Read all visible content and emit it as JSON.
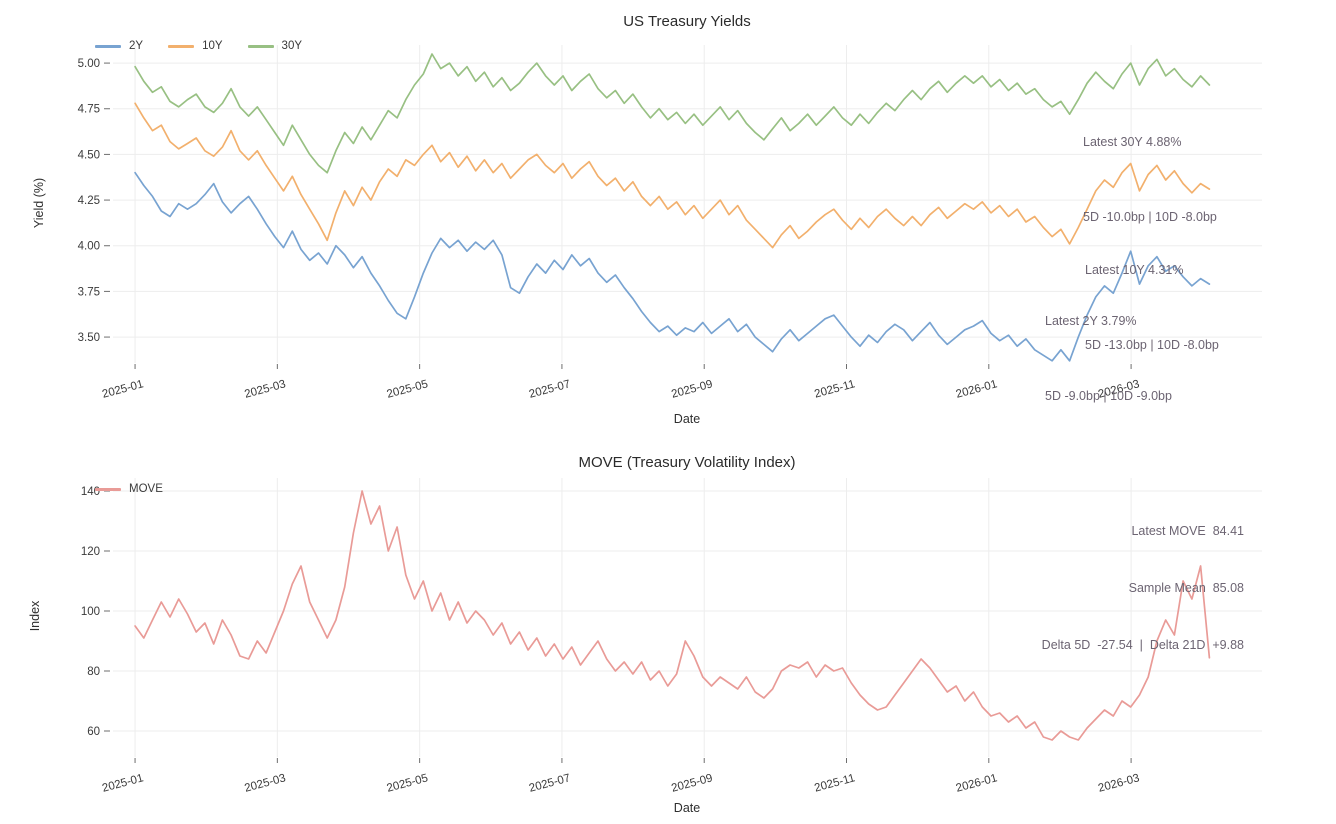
{
  "page": {
    "background": "#ffffff",
    "grid_color": "#ededed",
    "tick_color": "#6e6e6e",
    "annotation_color": "#6c6472"
  },
  "chart_data": [
    {
      "type": "line",
      "title": "US Treasury Yields",
      "xlabel": "Date",
      "ylabel": "Yield (%)",
      "grid": true,
      "legend_position": "top-left",
      "xlim": [
        -0.31,
        15.84
      ],
      "ylim": [
        3.358,
        5.099
      ],
      "x_unit": "months since 2025-01",
      "x_start": 0,
      "x_end": 15.1,
      "x_ticks": {
        "months": [
          0,
          2,
          4,
          6,
          8,
          10,
          12,
          14
        ],
        "labels": [
          "2025-01",
          "2025-03",
          "2025-05",
          "2025-07",
          "2025-09",
          "2025-11",
          "2026-01",
          "2026-03"
        ]
      },
      "y_ticks": {
        "values": [
          3.5,
          3.75,
          4.0,
          4.25,
          4.5,
          4.75,
          5.0
        ],
        "labels": [
          "3.50",
          "3.75",
          "4.00",
          "4.25",
          "4.50",
          "4.75",
          "5.00"
        ]
      },
      "series": [
        {
          "name": "2Y",
          "color": "#78a3d1",
          "values": [
            4.4,
            4.33,
            4.27,
            4.19,
            4.16,
            4.23,
            4.2,
            4.23,
            4.28,
            4.34,
            4.24,
            4.18,
            4.23,
            4.27,
            4.2,
            4.12,
            4.05,
            3.99,
            4.08,
            3.98,
            3.92,
            3.96,
            3.9,
            4.0,
            3.95,
            3.88,
            3.94,
            3.85,
            3.78,
            3.7,
            3.63,
            3.6,
            3.72,
            3.85,
            3.96,
            4.04,
            3.99,
            4.03,
            3.97,
            4.02,
            3.98,
            4.03,
            3.95,
            3.77,
            3.74,
            3.83,
            3.9,
            3.85,
            3.92,
            3.87,
            3.95,
            3.89,
            3.93,
            3.85,
            3.8,
            3.84,
            3.77,
            3.71,
            3.64,
            3.58,
            3.53,
            3.56,
            3.51,
            3.55,
            3.53,
            3.58,
            3.52,
            3.56,
            3.6,
            3.53,
            3.57,
            3.5,
            3.46,
            3.42,
            3.49,
            3.54,
            3.48,
            3.52,
            3.56,
            3.6,
            3.62,
            3.56,
            3.5,
            3.45,
            3.51,
            3.47,
            3.53,
            3.57,
            3.54,
            3.48,
            3.53,
            3.58,
            3.51,
            3.46,
            3.5,
            3.54,
            3.56,
            3.59,
            3.52,
            3.48,
            3.51,
            3.45,
            3.49,
            3.43,
            3.4,
            3.37,
            3.43,
            3.37,
            3.5,
            3.62,
            3.72,
            3.78,
            3.74,
            3.85,
            3.97,
            3.79,
            3.89,
            3.94,
            3.86,
            3.89,
            3.83,
            3.78,
            3.82,
            3.79
          ]
        },
        {
          "name": "10Y",
          "color": "#f2b06d",
          "values": [
            4.78,
            4.7,
            4.63,
            4.66,
            4.57,
            4.53,
            4.56,
            4.59,
            4.52,
            4.49,
            4.54,
            4.63,
            4.52,
            4.47,
            4.52,
            4.44,
            4.37,
            4.3,
            4.38,
            4.28,
            4.2,
            4.12,
            4.03,
            4.18,
            4.3,
            4.22,
            4.32,
            4.25,
            4.35,
            4.42,
            4.38,
            4.47,
            4.44,
            4.5,
            4.55,
            4.46,
            4.51,
            4.43,
            4.49,
            4.41,
            4.47,
            4.4,
            4.45,
            4.37,
            4.42,
            4.47,
            4.5,
            4.44,
            4.4,
            4.45,
            4.37,
            4.42,
            4.46,
            4.38,
            4.33,
            4.37,
            4.3,
            4.35,
            4.27,
            4.22,
            4.27,
            4.2,
            4.24,
            4.17,
            4.22,
            4.15,
            4.2,
            4.25,
            4.17,
            4.22,
            4.14,
            4.09,
            4.04,
            3.99,
            4.06,
            4.11,
            4.04,
            4.08,
            4.13,
            4.17,
            4.2,
            4.14,
            4.09,
            4.15,
            4.1,
            4.16,
            4.2,
            4.15,
            4.11,
            4.16,
            4.11,
            4.17,
            4.21,
            4.15,
            4.19,
            4.23,
            4.2,
            4.24,
            4.18,
            4.22,
            4.16,
            4.2,
            4.13,
            4.16,
            4.1,
            4.05,
            4.09,
            4.01,
            4.1,
            4.2,
            4.3,
            4.36,
            4.32,
            4.4,
            4.45,
            4.3,
            4.39,
            4.44,
            4.36,
            4.41,
            4.34,
            4.29,
            4.34,
            4.31
          ]
        },
        {
          "name": "30Y",
          "color": "#98c083",
          "values": [
            4.98,
            4.9,
            4.84,
            4.87,
            4.79,
            4.76,
            4.8,
            4.83,
            4.76,
            4.73,
            4.78,
            4.86,
            4.76,
            4.71,
            4.76,
            4.69,
            4.62,
            4.55,
            4.66,
            4.58,
            4.5,
            4.44,
            4.4,
            4.52,
            4.62,
            4.56,
            4.65,
            4.58,
            4.66,
            4.74,
            4.7,
            4.8,
            4.88,
            4.94,
            5.05,
            4.97,
            5.0,
            4.93,
            4.98,
            4.9,
            4.95,
            4.87,
            4.92,
            4.85,
            4.89,
            4.95,
            5.0,
            4.93,
            4.88,
            4.93,
            4.85,
            4.9,
            4.94,
            4.86,
            4.81,
            4.85,
            4.78,
            4.83,
            4.76,
            4.7,
            4.75,
            4.69,
            4.73,
            4.67,
            4.72,
            4.66,
            4.71,
            4.76,
            4.69,
            4.74,
            4.67,
            4.62,
            4.58,
            4.64,
            4.7,
            4.63,
            4.67,
            4.72,
            4.66,
            4.71,
            4.76,
            4.7,
            4.66,
            4.72,
            4.67,
            4.73,
            4.78,
            4.74,
            4.8,
            4.85,
            4.8,
            4.86,
            4.9,
            4.84,
            4.89,
            4.93,
            4.89,
            4.93,
            4.87,
            4.91,
            4.85,
            4.89,
            4.83,
            4.86,
            4.8,
            4.76,
            4.79,
            4.72,
            4.8,
            4.89,
            4.95,
            4.9,
            4.86,
            4.94,
            5.0,
            4.88,
            4.97,
            5.02,
            4.93,
            4.97,
            4.91,
            4.87,
            4.93,
            4.88
          ]
        }
      ],
      "annotations": [
        {
          "id": "ann-30y",
          "lines": [
            "Latest 30Y 4.88%",
            "5D -10.0bp | 10D -8.0bp"
          ]
        },
        {
          "id": "ann-10y",
          "lines": [
            "Latest 10Y 4.31%",
            "5D -13.0bp | 10D -8.0bp"
          ]
        },
        {
          "id": "ann-2y",
          "lines": [
            "Latest 2Y 3.79%",
            "5D -9.0bp | 10D -9.0bp"
          ]
        }
      ]
    },
    {
      "type": "line",
      "title": "MOVE (Treasury Volatility Index)",
      "xlabel": "Date",
      "ylabel": "Index",
      "grid": true,
      "legend_position": "top-left",
      "xlim": [
        -0.31,
        15.84
      ],
      "ylim": [
        51.33,
        144.33
      ],
      "x_unit": "months since 2025-01",
      "x_start": 0,
      "x_end": 15.1,
      "x_ticks": {
        "months": [
          0,
          2,
          4,
          6,
          8,
          10,
          12,
          14
        ],
        "labels": [
          "2025-01",
          "2025-03",
          "2025-05",
          "2025-07",
          "2025-09",
          "2025-11",
          "2026-01",
          "2026-03"
        ]
      },
      "y_ticks": {
        "values": [
          60,
          80,
          100,
          120,
          140
        ],
        "labels": [
          "60",
          "80",
          "100",
          "120",
          "140"
        ]
      },
      "series": [
        {
          "name": "MOVE",
          "color": "#e99b97",
          "values": [
            95,
            91,
            97,
            103,
            98,
            104,
            99,
            93,
            96,
            89,
            97,
            92,
            85,
            84,
            90,
            86,
            93,
            100,
            109,
            115,
            103,
            97,
            91,
            97,
            108,
            126,
            140,
            129,
            135,
            120,
            128,
            112,
            104,
            110,
            100,
            106,
            97,
            103,
            96,
            100,
            97,
            92,
            96,
            89,
            93,
            87,
            91,
            85,
            89,
            84,
            88,
            82,
            86,
            90,
            84,
            80,
            83,
            79,
            83,
            77,
            80,
            75,
            79,
            90,
            85,
            78,
            75,
            78,
            76,
            74,
            78,
            73,
            71,
            74,
            80,
            82,
            81,
            83,
            78,
            82,
            80,
            81,
            76,
            72,
            69,
            67,
            68,
            72,
            76,
            80,
            84,
            81,
            77,
            73,
            75,
            70,
            73,
            68,
            65,
            66,
            63,
            65,
            61,
            63,
            58,
            57,
            60,
            58,
            57,
            61,
            64,
            67,
            65,
            70,
            68,
            72,
            78,
            90,
            97,
            92,
            110,
            104,
            115,
            84.41
          ]
        }
      ],
      "annotations": [
        {
          "id": "ann-move",
          "lines": [
            "Latest MOVE  84.41",
            "Sample Mean  85.08",
            "Delta 5D  -27.54  |  Delta 21D  +9.88"
          ]
        }
      ]
    }
  ]
}
